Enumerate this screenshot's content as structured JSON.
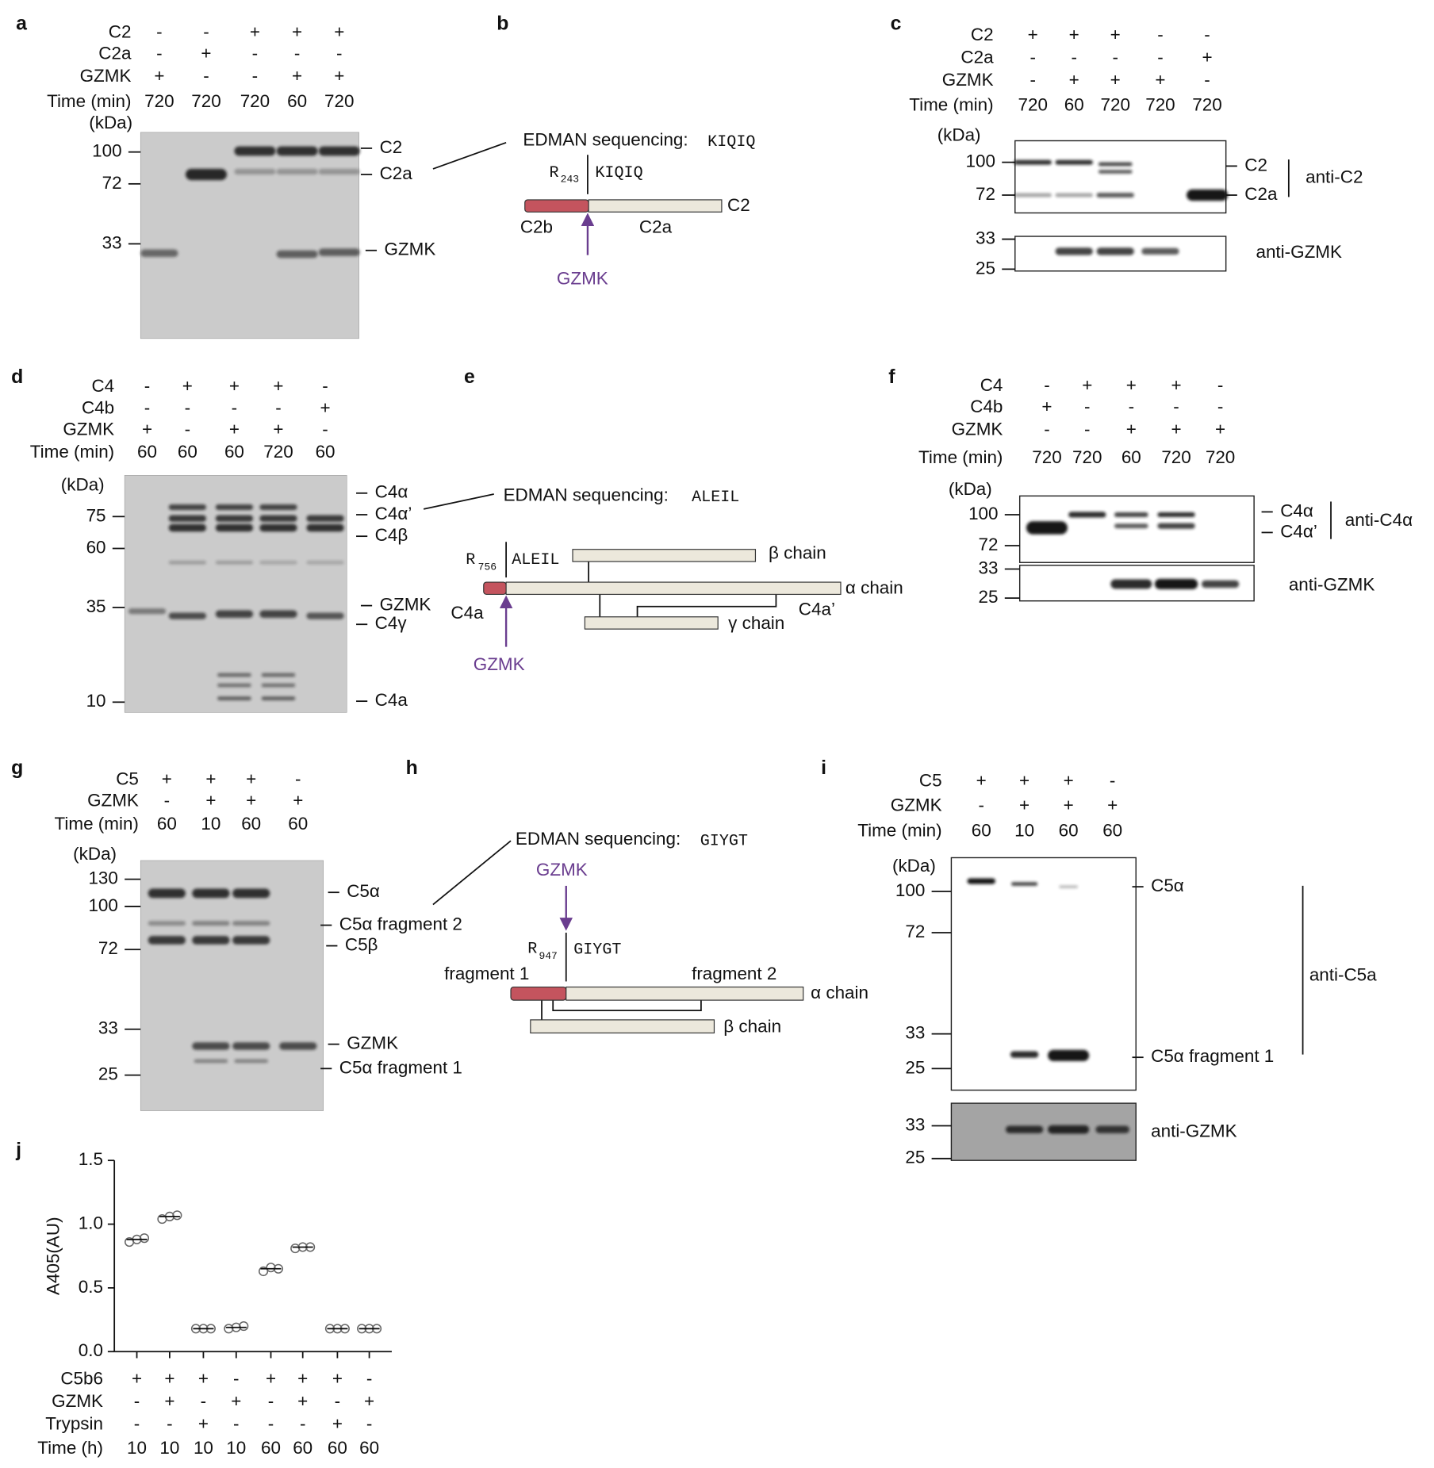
{
  "panels": [
    {
      "letter": "a",
      "conditions": [
        {
          "label": "C2",
          "values": [
            "-",
            "-",
            "+",
            "+",
            "+"
          ]
        },
        {
          "label": "C2a",
          "values": [
            "-",
            "+",
            "-",
            "-",
            "-"
          ]
        },
        {
          "label": "GZMK",
          "values": [
            "+",
            "-",
            "-",
            "+",
            "+"
          ]
        },
        {
          "label": "Time (min)",
          "values": [
            720,
            720,
            720,
            60,
            720
          ]
        }
      ],
      "unit": "(kDa)",
      "markers": [
        100,
        72,
        33
      ],
      "labels": [
        "C2",
        "C2a",
        "GZMK"
      ]
    },
    {
      "letter": "b",
      "edman_label": "EDMAN sequencing:",
      "edman_seq": "KIQIQ",
      "site_residue": "R",
      "site_number": 243,
      "site_seq": "KIQIQ",
      "chain_label": "C2",
      "fragments": [
        "C2b",
        "C2a"
      ],
      "protease": "GZMK"
    },
    {
      "letter": "c",
      "conditions": [
        {
          "label": "C2",
          "values": [
            "+",
            "+",
            "+",
            "-",
            "-"
          ]
        },
        {
          "label": "C2a",
          "values": [
            "-",
            "-",
            "-",
            "-",
            "+"
          ]
        },
        {
          "label": "GZMK",
          "values": [
            "-",
            "+",
            "+",
            "+",
            "-"
          ]
        },
        {
          "label": "Time (min)",
          "values": [
            720,
            60,
            720,
            720,
            720
          ]
        }
      ],
      "unit": "(kDa)",
      "markers": [
        100,
        72,
        33,
        25
      ],
      "labels": [
        "C2",
        "C2a",
        "anti-C2",
        "anti-GZMK"
      ]
    },
    {
      "letter": "d",
      "conditions": [
        {
          "label": "C4",
          "values": [
            "-",
            "+",
            "+",
            "+",
            "-"
          ]
        },
        {
          "label": "C4b",
          "values": [
            "-",
            "-",
            "-",
            "-",
            "+"
          ]
        },
        {
          "label": "GZMK",
          "values": [
            "+",
            "-",
            "+",
            "+",
            "-"
          ]
        },
        {
          "label": "Time (min)",
          "values": [
            60,
            60,
            60,
            720,
            60
          ]
        }
      ],
      "unit": "(kDa)",
      "markers": [
        75,
        60,
        35,
        10
      ],
      "labels": [
        "C4α",
        "C4α’",
        "C4β",
        "GZMK",
        "C4γ",
        "C4a"
      ]
    },
    {
      "letter": "e",
      "edman_label": "EDMAN sequencing:",
      "edman_seq": "ALEIL",
      "site_residue": "R",
      "site_number": 756,
      "site_seq": "ALEIL",
      "chains": [
        "β chain",
        "α chain",
        "γ chain"
      ],
      "fragments": [
        "C4a",
        "C4a’"
      ],
      "protease": "GZMK"
    },
    {
      "letter": "f",
      "conditions": [
        {
          "label": "C4",
          "values": [
            "-",
            "+",
            "+",
            "+",
            "-"
          ]
        },
        {
          "label": "C4b",
          "values": [
            "+",
            "-",
            "-",
            "-",
            "-"
          ]
        },
        {
          "label": "GZMK",
          "values": [
            "-",
            "-",
            "+",
            "+",
            "+"
          ]
        },
        {
          "label": "Time (min)",
          "values": [
            720,
            720,
            60,
            720,
            720
          ]
        }
      ],
      "unit": "(kDa)",
      "markers": [
        100,
        72,
        33,
        25
      ],
      "labels": [
        "C4α",
        "C4α’",
        "anti-C4α",
        "anti-GZMK"
      ]
    },
    {
      "letter": "g",
      "conditions": [
        {
          "label": "C5",
          "values": [
            "+",
            "+",
            "+",
            "-"
          ]
        },
        {
          "label": "GZMK",
          "values": [
            "-",
            "+",
            "+",
            "+"
          ]
        },
        {
          "label": "Time (min)",
          "values": [
            60,
            10,
            60,
            60
          ]
        }
      ],
      "unit": "(kDa)",
      "markers": [
        130,
        100,
        72,
        33,
        25
      ],
      "labels": [
        "C5α",
        "C5α fragment 2",
        "C5β",
        "GZMK",
        "C5α fragment 1"
      ]
    },
    {
      "letter": "h",
      "edman_label": "EDMAN sequencing:",
      "edman_seq": "GIYGT",
      "protease": "GZMK",
      "site_residue": "R",
      "site_number": 947,
      "site_seq": "GIYGT",
      "fragments": [
        "fragment 1",
        "fragment 2"
      ],
      "chains": [
        "α chain",
        "β chain"
      ]
    },
    {
      "letter": "i",
      "conditions": [
        {
          "label": "C5",
          "values": [
            "+",
            "+",
            "+",
            "-"
          ]
        },
        {
          "label": "GZMK",
          "values": [
            "-",
            "+",
            "+",
            "+"
          ]
        },
        {
          "label": "Time (min)",
          "values": [
            60,
            10,
            60,
            60
          ]
        }
      ],
      "unit": "(kDa)",
      "markers": [
        100,
        72,
        33,
        25,
        33,
        25
      ],
      "labels": [
        "C5α",
        "C5α fragment 1",
        "anti-C5a",
        "anti-GZMK"
      ]
    },
    {
      "letter": "j",
      "chart": {
        "type": "dot",
        "ylabel": "A405(AU)",
        "ylim": [
          0,
          1.5
        ],
        "yticks": [
          {
            "value": 0,
            "label": "0.0"
          },
          0.5,
          {
            "value": 1,
            "label": "1.0"
          },
          1.5
        ],
        "values": [
          0.88,
          1.06,
          0.18,
          0.19,
          0.65,
          0.82,
          0.18,
          0.18
        ],
        "replicates": [
          [
            0.86,
            0.88,
            0.89
          ],
          [
            1.04,
            1.06,
            1.07
          ],
          [
            0.18,
            0.18,
            0.18
          ],
          [
            0.18,
            0.19,
            0.2
          ],
          [
            0.63,
            0.66,
            0.65
          ],
          [
            0.81,
            0.82,
            0.82
          ],
          [
            0.18,
            0.18,
            0.18
          ],
          [
            0.18,
            0.18,
            0.18
          ]
        ]
      },
      "conditions": [
        {
          "label": "C5b6",
          "values": [
            "+",
            "+",
            "+",
            "-",
            "+",
            "+",
            "+",
            "-"
          ]
        },
        {
          "label": "GZMK",
          "values": [
            "-",
            "+",
            "-",
            "+",
            "-",
            "+",
            "-",
            "+"
          ]
        },
        {
          "label": "Trypsin",
          "values": [
            "-",
            "-",
            "+",
            "-",
            "-",
            "-",
            "+",
            "-"
          ]
        },
        {
          "label": "Time (h)",
          "values": [
            10,
            10,
            10,
            10,
            60,
            60,
            60,
            60
          ]
        }
      ]
    }
  ]
}
